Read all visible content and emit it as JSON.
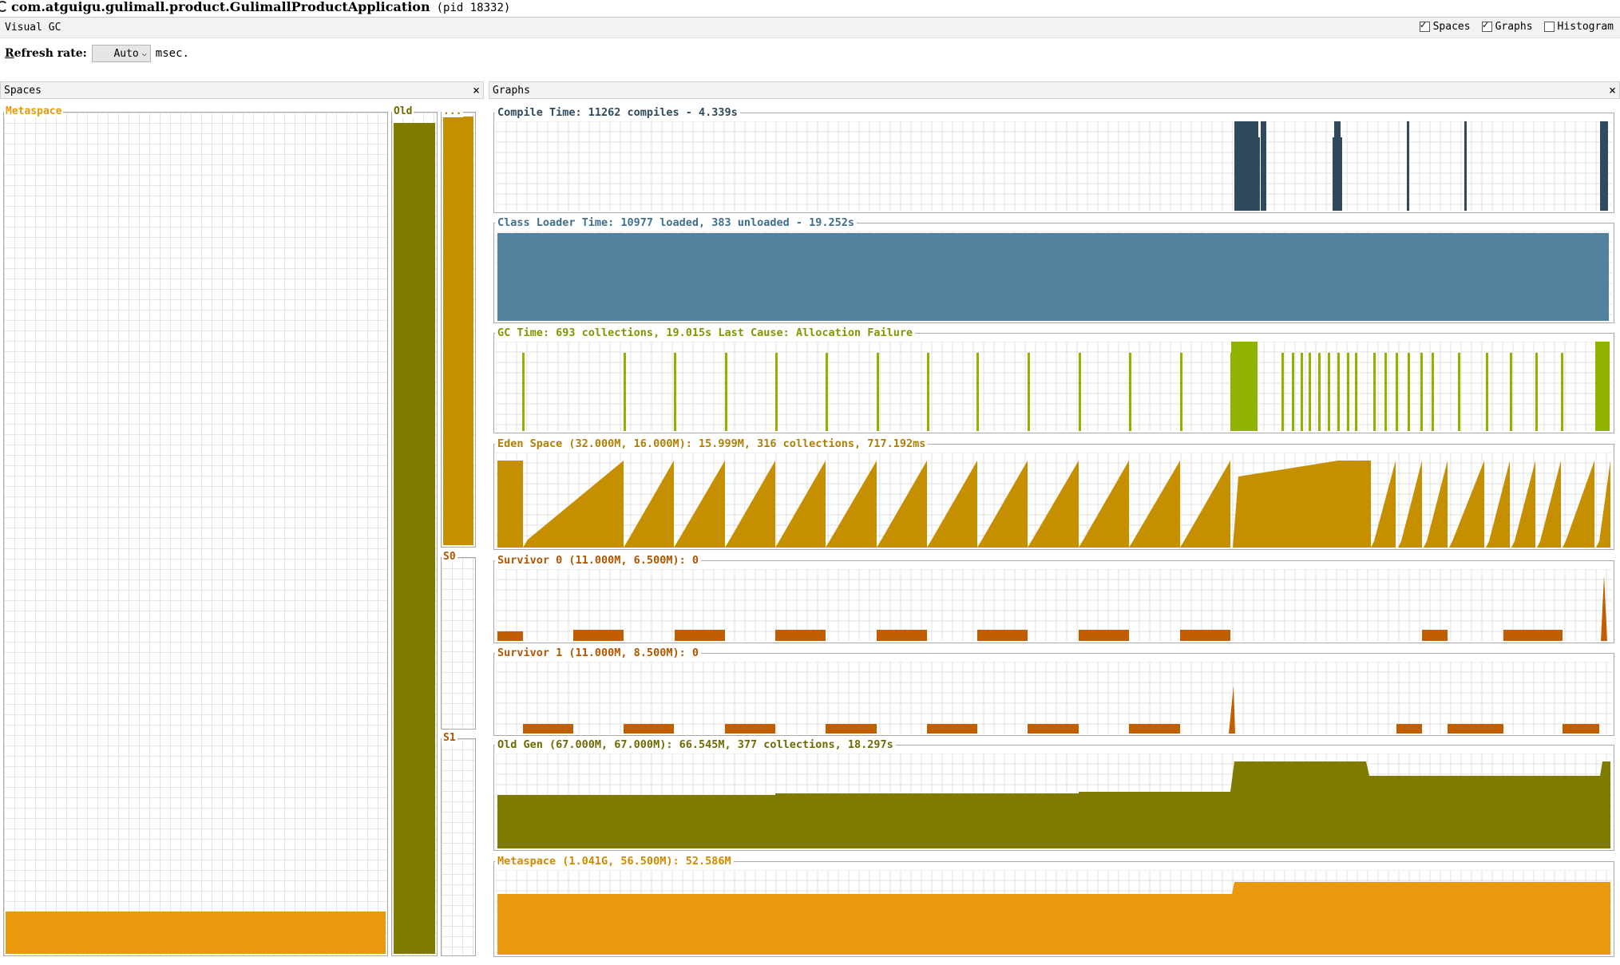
{
  "window": {
    "title": "com.atguigu.gulimall.product.GulimallProductApplication",
    "pid": "(pid 18332)"
  },
  "tab": {
    "label": "Visual GC",
    "options": [
      {
        "label": "Spaces",
        "checked": true
      },
      {
        "label": "Graphs",
        "checked": true
      },
      {
        "label": "Histogram",
        "checked": false
      }
    ]
  },
  "refresh": {
    "label_first": "R",
    "label_rest": "efresh rate:",
    "value": "Auto",
    "unit": "msec."
  },
  "spaces_panel": {
    "title": "Spaces",
    "close": "×",
    "metaspace": {
      "label": "Metaspace",
      "fill_fraction": 0.05,
      "color": "#e89a0c"
    },
    "old": {
      "label": "Old",
      "fill_fraction": 0.99,
      "color": "#7f7a00"
    },
    "eden": {
      "label": "...",
      "fill_fraction": 0.995,
      "color": "#c68f00"
    },
    "s0": {
      "label": "S0",
      "fill_fraction": 0.0
    },
    "s1": {
      "label": "S1",
      "fill_fraction": 0.0
    }
  },
  "graphs_panel": {
    "title": "Graphs",
    "close": "×",
    "graphs": [
      {
        "key": "compile",
        "label": "Compile Time: 11262 compiles - 4.339s",
        "color": "#2e4a5c",
        "label_color": "#2e4a5c"
      },
      {
        "key": "classloader",
        "label": "Class Loader Time: 10977 loaded, 383 unloaded - 19.252s",
        "color": "#52829e",
        "label_color": "#3f6f8e"
      },
      {
        "key": "gc",
        "label": "GC Time: 693 collections, 19.015s  Last Cause: Allocation Failure",
        "color": "#8fb300",
        "label_color": "#7a9a00"
      },
      {
        "key": "eden",
        "label": "Eden Space (32.000M, 16.000M): 15.999M, 316 collections, 717.192ms",
        "color": "#c68f00",
        "label_color": "#b07f00"
      },
      {
        "key": "s0",
        "label": "Survivor 0 (11.000M, 6.500M): 0",
        "color": "#c15f00",
        "label_color": "#b05500"
      },
      {
        "key": "s1",
        "label": "Survivor 1 (11.000M, 8.500M): 0",
        "color": "#c15f00",
        "label_color": "#b05500"
      },
      {
        "key": "old",
        "label": "Old Gen (67.000M, 67.000M): 66.545M, 377 collections, 18.297s",
        "color": "#7f7a00",
        "label_color": "#6f6a00"
      },
      {
        "key": "meta",
        "label": "Metaspace (1.041G, 56.500M): 52.586M",
        "color": "#e89a0c",
        "label_color": "#d08a00"
      }
    ]
  }
}
